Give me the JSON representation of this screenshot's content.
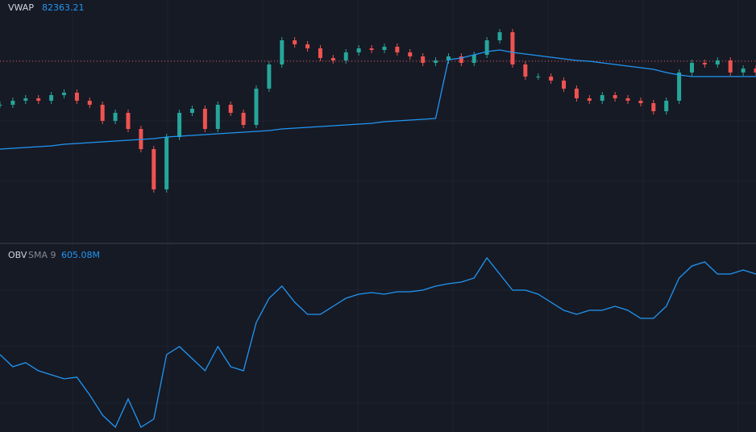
{
  "panels": [
    {
      "label": "VWAP",
      "value": "82363.21",
      "ylim": [
        0,
        300
      ],
      "price": {
        "color_up": "#26a69a",
        "color_down": "#ef5350",
        "values": [
          170,
          175,
          178,
          175,
          182,
          185,
          175,
          170,
          150,
          160,
          140,
          115,
          65,
          130,
          160,
          165,
          140,
          170,
          160,
          145,
          190,
          220,
          250,
          245,
          240,
          228,
          225,
          235,
          240,
          238,
          242,
          235,
          230,
          222,
          225,
          230,
          222,
          232,
          250,
          260,
          220,
          205,
          205,
          200,
          190,
          178,
          175,
          182,
          178,
          175,
          172,
          162,
          175,
          210,
          222,
          220,
          225,
          210,
          215,
          210
        ]
      },
      "vwap": {
        "color": "#2196f3",
        "values": [
          115,
          116,
          117,
          118,
          119,
          121,
          122,
          123,
          124,
          125,
          126,
          127,
          128,
          130,
          131,
          132,
          133,
          134,
          135,
          136,
          137,
          138,
          140,
          141,
          142,
          143,
          144,
          145,
          146,
          147,
          149,
          150,
          151,
          152,
          153,
          226,
          228,
          232,
          236,
          238,
          235,
          233,
          231,
          229,
          227,
          225,
          224,
          222,
          220,
          218,
          216,
          214,
          210,
          207,
          205,
          205,
          205,
          205,
          205,
          205
        ]
      }
    },
    {
      "label": "OBV",
      "sublabel": "SMA 9",
      "value": "605.08M",
      "ylim": [
        0,
        233
      ],
      "obv": {
        "color": "#2196f3",
        "values": [
          96,
          81,
          86,
          76,
          71,
          66,
          68,
          46,
          21,
          6,
          41,
          6,
          16,
          96,
          106,
          91,
          76,
          106,
          81,
          76,
          136,
          166,
          181,
          161,
          146,
          146,
          156,
          166,
          171,
          173,
          171,
          174,
          174,
          176,
          181,
          184,
          186,
          191,
          216,
          196,
          176,
          176,
          171,
          161,
          151,
          146,
          151,
          151,
          156,
          151,
          141,
          141,
          156,
          191,
          206,
          211,
          196,
          196,
          201,
          196
        ]
      }
    }
  ]
}
